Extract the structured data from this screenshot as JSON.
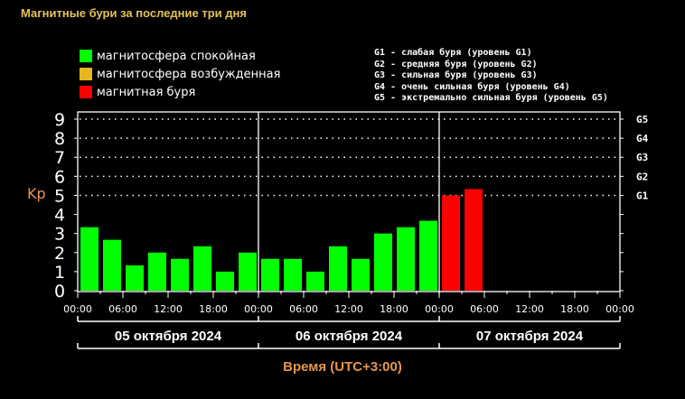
{
  "title": "Магнитные бури за последние три дня",
  "legend": [
    {
      "label": "магнитосфера спокойная",
      "color": "#00ff00"
    },
    {
      "label": "магнитосфера возбужденная",
      "color": "#e6b81e"
    },
    {
      "label": "магнитная буря",
      "color": "#ff0000"
    }
  ],
  "g_legend": [
    "G1 - слабая буря (уровень G1)",
    "G2 - средняя буря (уровень G2)",
    "G3 - сильная буря (уровень G3)",
    "G4 - очень сильная буря (уровень G4)",
    "G5 - экстремально сильная буря (уровень G5)"
  ],
  "y_axis_label": "Kp",
  "x_axis_title": "Время (UTC+3:00)",
  "days": [
    "05 октября 2024",
    "06 октября 2024",
    "07 октября 2024"
  ],
  "chart_data": {
    "type": "bar",
    "title": "Магнитные бури за последние три дня",
    "xlabel": "Время (UTC+3:00)",
    "ylabel": "Kp",
    "ylim": [
      0,
      9
    ],
    "yticks": [
      0,
      1,
      2,
      3,
      4,
      5,
      6,
      7,
      8,
      9
    ],
    "right_ticks": [
      {
        "y": 5,
        "label": "G1"
      },
      {
        "y": 6,
        "label": "G2"
      },
      {
        "y": 7,
        "label": "G3"
      },
      {
        "y": 8,
        "label": "G4"
      },
      {
        "y": 9,
        "label": "G5"
      }
    ],
    "xtick_labels": [
      "00:00",
      "06:00",
      "12:00",
      "18:00",
      "00:00",
      "06:00",
      "12:00",
      "18:00",
      "00:00",
      "06:00",
      "12:00",
      "18:00",
      "00:00"
    ],
    "grid": "dotted horizontal at 5-9",
    "categories": [
      "05.10 00:00",
      "05.10 03:00",
      "05.10 06:00",
      "05.10 09:00",
      "05.10 12:00",
      "05.10 15:00",
      "05.10 18:00",
      "05.10 21:00",
      "06.10 00:00",
      "06.10 03:00",
      "06.10 06:00",
      "06.10 09:00",
      "06.10 12:00",
      "06.10 15:00",
      "06.10 18:00",
      "06.10 21:00",
      "07.10 00:00",
      "07.10 03:00"
    ],
    "values": [
      3.33,
      2.67,
      1.33,
      2.0,
      1.67,
      2.33,
      1.0,
      2.0,
      1.67,
      1.67,
      1.0,
      2.33,
      1.67,
      3.0,
      3.33,
      3.67,
      5.0,
      5.33
    ],
    "colors": [
      "#00ff00",
      "#00ff00",
      "#00ff00",
      "#00ff00",
      "#00ff00",
      "#00ff00",
      "#00ff00",
      "#00ff00",
      "#00ff00",
      "#00ff00",
      "#00ff00",
      "#00ff00",
      "#00ff00",
      "#00ff00",
      "#00ff00",
      "#00ff00",
      "#ff0000",
      "#ff0000"
    ]
  }
}
